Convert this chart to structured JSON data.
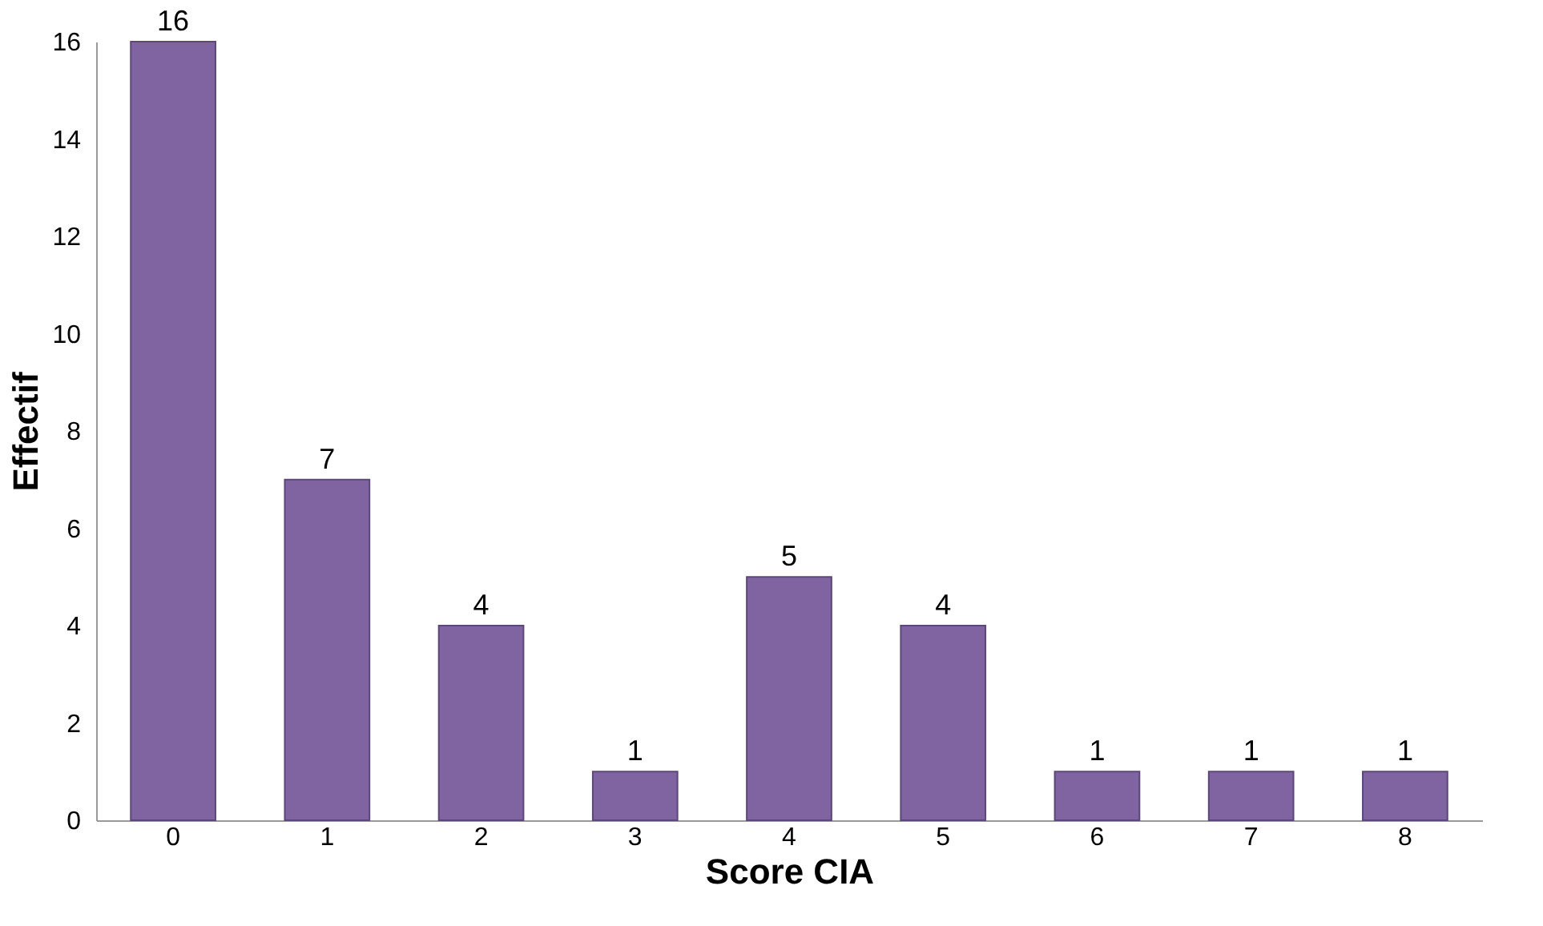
{
  "chart_data": {
    "type": "bar",
    "xlabel": "Score CIA",
    "ylabel": "Effectif",
    "categories": [
      "0",
      "1",
      "2",
      "3",
      "4",
      "5",
      "6",
      "7",
      "8"
    ],
    "values": [
      16,
      7,
      4,
      1,
      5,
      4,
      1,
      1,
      1
    ],
    "color": "#8064a2",
    "data_labels": true,
    "grid": false,
    "ylim": [
      0,
      16
    ],
    "yticks": [
      0,
      2,
      4,
      6,
      8,
      10,
      12,
      14,
      16
    ]
  }
}
